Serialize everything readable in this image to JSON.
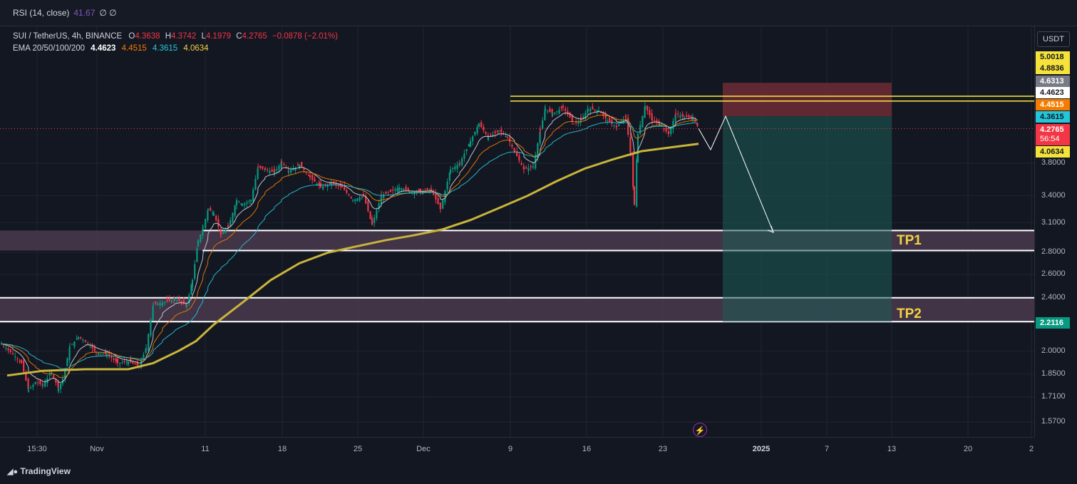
{
  "rsi": {
    "label": "RSI (14, close)",
    "value": "41.67",
    "extra": "∅ ∅"
  },
  "header": {
    "symbol": "SUI / TetherUS, 4h, BINANCE",
    "o_label": "O",
    "o": "4.3638",
    "h_label": "H",
    "h": "4.3742",
    "l_label": "L",
    "l": "4.1979",
    "c_label": "C",
    "c": "4.2765",
    "change": "−0.0878 (−2.01%)"
  },
  "ema_legend": {
    "label": "EMA 20/50/100/200",
    "v20": "4.4623",
    "v50": "4.4515",
    "v100": "4.3615",
    "v200": "4.0634"
  },
  "currency": "USDT",
  "tp1_label": "TP1",
  "tp2_label": "TP2",
  "footer": "TradingView",
  "colors": {
    "bg": "#131722",
    "up": "#089981",
    "down": "#f23645",
    "ema20": "#d1d4dc",
    "ema50": "#f57c00",
    "ema100": "#26c6da",
    "ema200": "#c9b43a",
    "tp_label": "#f5d142",
    "resistance": "#ffeb3b"
  },
  "chart_data": {
    "type": "candlestick",
    "title": "SUI / TetherUS, 4h, BINANCE",
    "y_scale": "log",
    "ylim": [
      1.52,
      5.12
    ],
    "y_ticks": [
      "3.8000",
      "3.4000",
      "3.1000",
      "2.8000",
      "2.6000",
      "2.4000",
      "2.0000",
      "1.8500",
      "1.7100",
      "1.5700"
    ],
    "x_ticks": [
      "15:30",
      "Nov",
      "11",
      "18",
      "25",
      "Dec",
      "9",
      "16",
      "23",
      "2025",
      "7",
      "13",
      "20",
      "2"
    ],
    "price_tags": [
      {
        "value": "5.0018",
        "kind": "stop"
      },
      {
        "value": "4.8836",
        "kind": "level"
      },
      {
        "value": "4.6313",
        "kind": "high"
      },
      {
        "value": "4.4623",
        "kind": "ema20"
      },
      {
        "value": "4.4515",
        "kind": "ema50"
      },
      {
        "value": "4.3615",
        "kind": "ema100"
      },
      {
        "value": "4.2765",
        "kind": "last",
        "countdown": "56:54"
      },
      {
        "value": "4.0634",
        "kind": "ema200"
      },
      {
        "value": "2.2116",
        "kind": "target"
      }
    ],
    "close_path": [
      [
        1.93,
        2.05
      ],
      [
        18,
        1.98
      ],
      [
        30,
        1.92
      ],
      [
        40,
        1.75
      ],
      [
        50,
        1.8
      ],
      [
        60,
        1.78
      ],
      [
        72,
        1.86
      ],
      [
        82,
        1.76
      ],
      [
        88,
        1.82
      ],
      [
        98,
        2.03
      ],
      [
        110,
        2.1
      ],
      [
        120,
        2.07
      ],
      [
        135,
        1.99
      ],
      [
        150,
        1.98
      ],
      [
        165,
        1.92
      ],
      [
        180,
        1.93
      ],
      [
        195,
        1.9
      ],
      [
        205,
        2.02
      ],
      [
        215,
        2.35
      ],
      [
        228,
        2.36
      ],
      [
        245,
        2.39
      ],
      [
        262,
        2.34
      ],
      [
        270,
        2.55
      ],
      [
        278,
        2.92
      ],
      [
        285,
        3.05
      ],
      [
        292,
        3.25
      ],
      [
        300,
        3.2
      ],
      [
        310,
        2.98
      ],
      [
        320,
        3.05
      ],
      [
        332,
        3.35
      ],
      [
        340,
        3.3
      ],
      [
        352,
        3.35
      ],
      [
        362,
        3.75
      ],
      [
        372,
        3.72
      ],
      [
        385,
        3.68
      ],
      [
        395,
        3.82
      ],
      [
        405,
        3.7
      ],
      [
        420,
        3.78
      ],
      [
        435,
        3.62
      ],
      [
        450,
        3.5
      ],
      [
        465,
        3.55
      ],
      [
        480,
        3.5
      ],
      [
        495,
        3.35
      ],
      [
        510,
        3.4
      ],
      [
        522,
        3.08
      ],
      [
        535,
        3.4
      ],
      [
        548,
        3.45
      ],
      [
        560,
        3.5
      ],
      [
        575,
        3.45
      ],
      [
        590,
        3.45
      ],
      [
        605,
        3.47
      ],
      [
        618,
        3.25
      ],
      [
        632,
        3.72
      ],
      [
        645,
        3.8
      ],
      [
        660,
        4.1
      ],
      [
        672,
        4.35
      ],
      [
        685,
        4.15
      ],
      [
        700,
        4.25
      ],
      [
        712,
        4.15
      ],
      [
        722,
        3.95
      ],
      [
        735,
        3.72
      ],
      [
        748,
        3.76
      ],
      [
        758,
        4.25
      ],
      [
        765,
        4.58
      ],
      [
        775,
        4.5
      ],
      [
        790,
        4.6
      ],
      [
        805,
        4.35
      ],
      [
        815,
        4.4
      ],
      [
        825,
        4.58
      ],
      [
        840,
        4.55
      ],
      [
        852,
        4.4
      ],
      [
        865,
        4.3
      ],
      [
        878,
        4.45
      ],
      [
        885,
        3.9
      ],
      [
        890,
        3.3
      ],
      [
        895,
        4.2
      ],
      [
        905,
        4.62
      ],
      [
        915,
        4.4
      ],
      [
        925,
        4.35
      ],
      [
        938,
        4.2
      ],
      [
        948,
        4.5
      ],
      [
        960,
        4.45
      ],
      [
        972,
        4.45
      ],
      [
        980,
        4.28
      ]
    ],
    "series": [
      {
        "name": "EMA 20",
        "last": 4.4623
      },
      {
        "name": "EMA 50",
        "last": 4.4515
      },
      {
        "name": "EMA 100",
        "last": 4.3615
      },
      {
        "name": "EMA 200",
        "last": 4.0634,
        "points": [
          [
            10,
            1.84
          ],
          [
            60,
            1.87
          ],
          [
            120,
            1.88
          ],
          [
            180,
            1.88
          ],
          [
            215,
            1.92
          ],
          [
            250,
            2.0
          ],
          [
            275,
            2.07
          ],
          [
            300,
            2.19
          ],
          [
            340,
            2.36
          ],
          [
            380,
            2.55
          ],
          [
            420,
            2.7
          ],
          [
            460,
            2.8
          ],
          [
            500,
            2.86
          ],
          [
            540,
            2.92
          ],
          [
            580,
            2.97
          ],
          [
            620,
            3.03
          ],
          [
            660,
            3.13
          ],
          [
            700,
            3.26
          ],
          [
            740,
            3.4
          ],
          [
            780,
            3.57
          ],
          [
            820,
            3.73
          ],
          [
            860,
            3.85
          ],
          [
            900,
            3.96
          ],
          [
            940,
            4.01
          ],
          [
            980,
            4.06
          ]
        ]
      }
    ],
    "annotations": {
      "resistance_lines": [
        4.883,
        4.7
      ],
      "trade_box": {
        "entry": 4.46,
        "stop": 5.0018,
        "target": 2.2116,
        "x_start": 1014,
        "x_end": 1251
      },
      "tp1_zone": [
        2.82,
        3.02
      ],
      "tp2_zone": [
        2.2116,
        2.4
      ],
      "projection": [
        [
          980,
          4.28
        ],
        [
          997,
          3.98
        ],
        [
          1018,
          4.46
        ],
        [
          1085,
          3.0
        ]
      ]
    }
  }
}
